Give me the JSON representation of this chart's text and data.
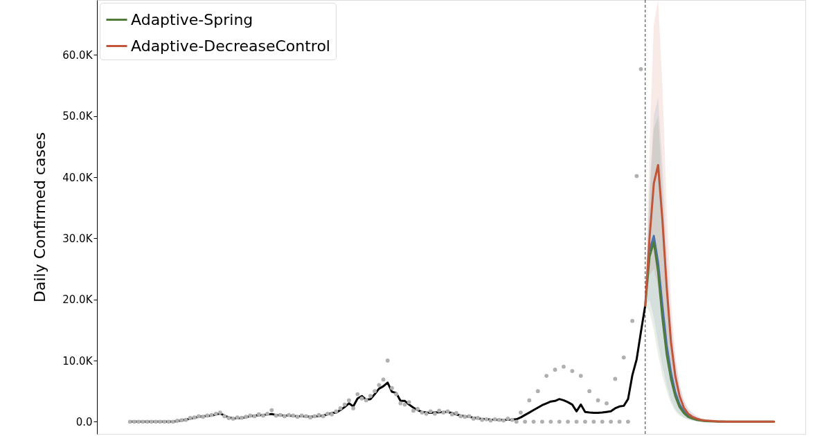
{
  "chart_data": {
    "type": "line",
    "ylabel": "Daily Confirmed cases",
    "categories": [
      null,
      null,
      null,
      null,
      null,
      null,
      null,
      null,
      null,
      null,
      null,
      null,
      null,
      null,
      null,
      null,
      null,
      null,
      null,
      null,
      null,
      null,
      null,
      null,
      null,
      null,
      null,
      null,
      null,
      null,
      null,
      null,
      null,
      null,
      null,
      null,
      null,
      null,
      null,
      null,
      null,
      null,
      null,
      null,
      null,
      null,
      null,
      null,
      null,
      null,
      null,
      null,
      null,
      null,
      null,
      null,
      null,
      null,
      null,
      null,
      null,
      null,
      null,
      null,
      null,
      null,
      null,
      null,
      null,
      null,
      null,
      null,
      null,
      null,
      null,
      null,
      null,
      null,
      null,
      null,
      null,
      null,
      null,
      null,
      null,
      null,
      null,
      null,
      null,
      null,
      null,
      null,
      null,
      null,
      null,
      null,
      null,
      null,
      null,
      null,
      null,
      null,
      null,
      null,
      null,
      null,
      null,
      null,
      null,
      null,
      null,
      null,
      null,
      null,
      null,
      null,
      null,
      null,
      null,
      null,
      null,
      null,
      null,
      null,
      null,
      null,
      null,
      null,
      null,
      null,
      null,
      null,
      null,
      null,
      null,
      null,
      null,
      null,
      null,
      null,
      null,
      null,
      null,
      null,
      null,
      null,
      null,
      null,
      null,
      null,
      null
    ],
    "ylim": [
      -2000,
      69000
    ],
    "yticks": [
      {
        "value": 0,
        "label": "0.0"
      },
      {
        "value": 10000,
        "label": "10.0K"
      },
      {
        "value": 20000,
        "label": "20.0K"
      },
      {
        "value": 30000,
        "label": "30.0K"
      },
      {
        "value": 40000,
        "label": "40.0K"
      },
      {
        "value": 50000,
        "label": "50.0K"
      },
      {
        "value": 60000,
        "label": "60.0K"
      }
    ],
    "tick_labels": "y",
    "legend": "top left",
    "series": [
      {
        "type": "scatter",
        "color": "#b0b0b0",
        "marker": "circle",
        "values": [
          0,
          0,
          0,
          0,
          0,
          0,
          0,
          0,
          0,
          0,
          0,
          150,
          250,
          300,
          600,
          700,
          900,
          800,
          1000,
          1100,
          1300,
          1500,
          900,
          600,
          500,
          700,
          650,
          800,
          1000,
          900,
          1200,
          1000,
          1300,
          1900,
          1000,
          1100,
          900,
          1100,
          1000,
          800,
          1000,
          900,
          700,
          900,
          1100,
          900,
          1300,
          1200,
          1700,
          2200,
          2800,
          3500,
          2200,
          4500,
          3800,
          3500,
          4200,
          5000,
          6000,
          6900,
          10000,
          5500,
          4500,
          3000,
          2800,
          3200,
          1800,
          2100,
          1500,
          1300,
          1700,
          1300,
          1800,
          1500,
          1700,
          1200,
          1400,
          900,
          800,
          900,
          500,
          600,
          300,
          400,
          200,
          400,
          300,
          200,
          500,
          300,
          0,
          1500,
          0,
          3500,
          0,
          5000,
          0,
          7500,
          0,
          8500,
          0,
          9000,
          0,
          8300,
          0,
          7500,
          0,
          5000,
          0,
          3500,
          0,
          3000,
          0,
          7000,
          0,
          10500,
          0,
          16500,
          40200,
          57700,
          null,
          null,
          null,
          null,
          null,
          null,
          null,
          null,
          null,
          null,
          null,
          null,
          null,
          null,
          null,
          null,
          null,
          null,
          null,
          null,
          null,
          null,
          null,
          null,
          null,
          null,
          null,
          null,
          null,
          null,
          null
        ]
      },
      {
        "color": "#000000",
        "values": [
          0,
          0,
          0,
          0,
          0,
          0,
          0,
          0,
          0,
          0,
          0,
          100,
          200,
          350,
          500,
          650,
          800,
          900,
          950,
          1000,
          1200,
          1350,
          1000,
          700,
          560,
          580,
          600,
          750,
          900,
          1000,
          1050,
          1100,
          1200,
          1250,
          1100,
          1050,
          1000,
          1000,
          950,
          900,
          900,
          850,
          800,
          850,
          950,
          1000,
          1200,
          1400,
          1500,
          1900,
          2400,
          3000,
          2500,
          3800,
          4200,
          3600,
          3700,
          4500,
          5400,
          5800,
          6400,
          4900,
          4700,
          3400,
          3400,
          2800,
          2300,
          1900,
          1600,
          1500,
          1450,
          1500,
          1550,
          1600,
          1600,
          1400,
          1200,
          1000,
          900,
          800,
          650,
          550,
          450,
          400,
          350,
          320,
          300,
          300,
          320,
          350,
          400,
          700,
          1100,
          1500,
          1900,
          2300,
          2700,
          3000,
          3300,
          3400,
          3700,
          3500,
          3200,
          2800,
          1700,
          2800,
          1600,
          1500,
          1450,
          1450,
          1500,
          1600,
          1700,
          2200,
          2500,
          2600,
          3700,
          7600,
          10200,
          14700,
          19000,
          null,
          null,
          null,
          null,
          null,
          null,
          null,
          null,
          null,
          null,
          null,
          null,
          null,
          null,
          null,
          null,
          null,
          null,
          null,
          null,
          null,
          null,
          null,
          null,
          null,
          null,
          null,
          null,
          null,
          null
        ]
      },
      {
        "color": "#4a72b0",
        "values": [
          null,
          null,
          null,
          null,
          null,
          null,
          null,
          null,
          null,
          null,
          null,
          null,
          null,
          null,
          null,
          null,
          null,
          null,
          null,
          null,
          null,
          null,
          null,
          null,
          null,
          null,
          null,
          null,
          null,
          null,
          null,
          null,
          null,
          null,
          null,
          null,
          null,
          null,
          null,
          null,
          null,
          null,
          null,
          null,
          null,
          null,
          null,
          null,
          null,
          null,
          null,
          null,
          null,
          null,
          null,
          null,
          null,
          null,
          null,
          null,
          null,
          null,
          null,
          null,
          null,
          null,
          null,
          null,
          null,
          null,
          null,
          null,
          null,
          null,
          null,
          null,
          null,
          null,
          null,
          null,
          null,
          null,
          null,
          null,
          null,
          null,
          null,
          null,
          null,
          null,
          null,
          null,
          null,
          null,
          null,
          null,
          null,
          null,
          null,
          null,
          null,
          null,
          null,
          null,
          null,
          null,
          null,
          null,
          null,
          null,
          null,
          null,
          null,
          null,
          null,
          null,
          null,
          null,
          null,
          null,
          null,
          28000,
          30400,
          26000,
          19000,
          12500,
          8000,
          4800,
          2800,
          1700,
          1000,
          650,
          null,
          null,
          null,
          null,
          null,
          null,
          null,
          null,
          null,
          null,
          null,
          null,
          null,
          null,
          null,
          null,
          null,
          null,
          null
        ],
        "upper": [
          null,
          null,
          null,
          null,
          null,
          null,
          null,
          null,
          null,
          null,
          null,
          null,
          null,
          null,
          null,
          null,
          null,
          null,
          null,
          null,
          null,
          null,
          null,
          null,
          null,
          null,
          null,
          null,
          null,
          null,
          null,
          null,
          null,
          null,
          null,
          null,
          null,
          null,
          null,
          null,
          null,
          null,
          null,
          null,
          null,
          null,
          null,
          null,
          null,
          null,
          null,
          null,
          null,
          null,
          null,
          null,
          null,
          null,
          null,
          null,
          null,
          null,
          null,
          null,
          null,
          null,
          null,
          null,
          null,
          null,
          null,
          null,
          null,
          null,
          null,
          null,
          null,
          null,
          null,
          null,
          null,
          null,
          null,
          null,
          null,
          null,
          null,
          null,
          null,
          null,
          null,
          null,
          null,
          null,
          null,
          null,
          null,
          null,
          null,
          null,
          null,
          null,
          null,
          null,
          null,
          null,
          null,
          null,
          null,
          null,
          null,
          null,
          null,
          null,
          null,
          null,
          null,
          null,
          null,
          null,
          19000,
          38000,
          50000,
          53000,
          42000,
          28000,
          17000,
          10000,
          6000,
          3500,
          2200,
          1500,
          1000,
          600,
          400,
          250,
          150,
          100,
          50,
          0,
          0,
          0,
          0,
          0,
          0,
          0,
          0,
          0,
          0,
          0,
          0
        ],
        "lower": [
          null,
          null,
          null,
          null,
          null,
          null,
          null,
          null,
          null,
          null,
          null,
          null,
          null,
          null,
          null,
          null,
          null,
          null,
          null,
          null,
          null,
          null,
          null,
          null,
          null,
          null,
          null,
          null,
          null,
          null,
          null,
          null,
          null,
          null,
          null,
          null,
          null,
          null,
          null,
          null,
          null,
          null,
          null,
          null,
          null,
          null,
          null,
          null,
          null,
          null,
          null,
          null,
          null,
          null,
          null,
          null,
          null,
          null,
          null,
          null,
          null,
          null,
          null,
          null,
          null,
          null,
          null,
          null,
          null,
          null,
          null,
          null,
          null,
          null,
          null,
          null,
          null,
          null,
          null,
          null,
          null,
          null,
          null,
          null,
          null,
          null,
          null,
          null,
          null,
          null,
          null,
          null,
          null,
          null,
          null,
          null,
          null,
          null,
          null,
          null,
          null,
          null,
          null,
          null,
          null,
          null,
          null,
          null,
          null,
          null,
          null,
          null,
          null,
          null,
          null,
          null,
          null,
          null,
          null,
          null,
          19000,
          20000,
          17000,
          13000,
          9000,
          6000,
          3500,
          2000,
          1200,
          700,
          400,
          200,
          100,
          50,
          0,
          0,
          0,
          0,
          0,
          0,
          0,
          0,
          0,
          0,
          0,
          0,
          0,
          0,
          0,
          0,
          0
        ]
      },
      {
        "name": "Adaptive-Spring",
        "color": "#4e7a3a",
        "values": [
          null,
          null,
          null,
          null,
          null,
          null,
          null,
          null,
          null,
          null,
          null,
          null,
          null,
          null,
          null,
          null,
          null,
          null,
          null,
          null,
          null,
          null,
          null,
          null,
          null,
          null,
          null,
          null,
          null,
          null,
          null,
          null,
          null,
          null,
          null,
          null,
          null,
          null,
          null,
          null,
          null,
          null,
          null,
          null,
          null,
          null,
          null,
          null,
          null,
          null,
          null,
          null,
          null,
          null,
          null,
          null,
          null,
          null,
          null,
          null,
          null,
          null,
          null,
          null,
          null,
          null,
          null,
          null,
          null,
          null,
          null,
          null,
          null,
          null,
          null,
          null,
          null,
          null,
          null,
          null,
          null,
          null,
          null,
          null,
          null,
          null,
          null,
          null,
          null,
          null,
          null,
          null,
          null,
          null,
          null,
          null,
          null,
          null,
          null,
          null,
          null,
          null,
          null,
          null,
          null,
          null,
          null,
          null,
          null,
          null,
          null,
          null,
          null,
          null,
          null,
          null,
          null,
          null,
          null,
          null,
          19000,
          27000,
          29400,
          24500,
          17000,
          11000,
          7000,
          4200,
          2400,
          1400,
          800,
          500,
          300,
          180,
          100,
          60,
          30,
          0,
          0,
          0,
          0,
          0,
          0,
          0,
          0,
          0,
          0,
          0,
          0,
          0,
          0
        ],
        "upper": [
          null,
          null,
          null,
          null,
          null,
          null,
          null,
          null,
          null,
          null,
          null,
          null,
          null,
          null,
          null,
          null,
          null,
          null,
          null,
          null,
          null,
          null,
          null,
          null,
          null,
          null,
          null,
          null,
          null,
          null,
          null,
          null,
          null,
          null,
          null,
          null,
          null,
          null,
          null,
          null,
          null,
          null,
          null,
          null,
          null,
          null,
          null,
          null,
          null,
          null,
          null,
          null,
          null,
          null,
          null,
          null,
          null,
          null,
          null,
          null,
          null,
          null,
          null,
          null,
          null,
          null,
          null,
          null,
          null,
          null,
          null,
          null,
          null,
          null,
          null,
          null,
          null,
          null,
          null,
          null,
          null,
          null,
          null,
          null,
          null,
          null,
          null,
          null,
          null,
          null,
          null,
          null,
          null,
          null,
          null,
          null,
          null,
          null,
          null,
          null,
          null,
          null,
          null,
          null,
          null,
          null,
          null,
          null,
          null,
          null,
          null,
          null,
          null,
          null,
          null,
          null,
          null,
          null,
          null,
          null,
          19000,
          37000,
          48000,
          50000,
          38000,
          24000,
          14000,
          8000,
          4500,
          2600,
          1600,
          1000,
          600,
          350,
          200,
          120,
          80,
          50,
          0,
          0,
          0,
          0,
          0,
          0,
          0,
          0,
          0,
          0,
          0,
          0,
          0
        ],
        "lower": [
          null,
          null,
          null,
          null,
          null,
          null,
          null,
          null,
          null,
          null,
          null,
          null,
          null,
          null,
          null,
          null,
          null,
          null,
          null,
          null,
          null,
          null,
          null,
          null,
          null,
          null,
          null,
          null,
          null,
          null,
          null,
          null,
          null,
          null,
          null,
          null,
          null,
          null,
          null,
          null,
          null,
          null,
          null,
          null,
          null,
          null,
          null,
          null,
          null,
          null,
          null,
          null,
          null,
          null,
          null,
          null,
          null,
          null,
          null,
          null,
          null,
          null,
          null,
          null,
          null,
          null,
          null,
          null,
          null,
          null,
          null,
          null,
          null,
          null,
          null,
          null,
          null,
          null,
          null,
          null,
          null,
          null,
          null,
          null,
          null,
          null,
          null,
          null,
          null,
          null,
          null,
          null,
          null,
          null,
          null,
          null,
          null,
          null,
          null,
          null,
          null,
          null,
          null,
          null,
          null,
          null,
          null,
          null,
          null,
          null,
          null,
          null,
          null,
          null,
          null,
          null,
          null,
          null,
          null,
          null,
          19000,
          18000,
          15000,
          11000,
          7500,
          5000,
          3000,
          1700,
          1000,
          600,
          300,
          150,
          80,
          0,
          0,
          0,
          0,
          0,
          0,
          0,
          0,
          0,
          0,
          0,
          0,
          0,
          0,
          0,
          0,
          0,
          0
        ]
      },
      {
        "name": "Adaptive-DecreaseControl",
        "color": "#c0553a",
        "values": [
          null,
          null,
          null,
          null,
          null,
          null,
          null,
          null,
          null,
          null,
          null,
          null,
          null,
          null,
          null,
          null,
          null,
          null,
          null,
          null,
          null,
          null,
          null,
          null,
          null,
          null,
          null,
          null,
          null,
          null,
          null,
          null,
          null,
          null,
          null,
          null,
          null,
          null,
          null,
          null,
          null,
          null,
          null,
          null,
          null,
          null,
          null,
          null,
          null,
          null,
          null,
          null,
          null,
          null,
          null,
          null,
          null,
          null,
          null,
          null,
          null,
          null,
          null,
          null,
          null,
          null,
          null,
          null,
          null,
          null,
          null,
          null,
          null,
          null,
          null,
          null,
          null,
          null,
          null,
          null,
          null,
          null,
          null,
          null,
          null,
          null,
          null,
          null,
          null,
          null,
          null,
          null,
          null,
          null,
          null,
          null,
          null,
          null,
          null,
          null,
          null,
          null,
          null,
          null,
          null,
          null,
          null,
          null,
          null,
          null,
          null,
          null,
          null,
          null,
          null,
          null,
          null,
          null,
          null,
          null,
          19000,
          30000,
          39000,
          42000,
          33000,
          22000,
          13000,
          7500,
          4200,
          2300,
          1300,
          800,
          500,
          300,
          200,
          150,
          100,
          50,
          30,
          0,
          0,
          0,
          0,
          0,
          0,
          0,
          0,
          0,
          0,
          0,
          0
        ],
        "upper": [
          null,
          null,
          null,
          null,
          null,
          null,
          null,
          null,
          null,
          null,
          null,
          null,
          null,
          null,
          null,
          null,
          null,
          null,
          null,
          null,
          null,
          null,
          null,
          null,
          null,
          null,
          null,
          null,
          null,
          null,
          null,
          null,
          null,
          null,
          null,
          null,
          null,
          null,
          null,
          null,
          null,
          null,
          null,
          null,
          null,
          null,
          null,
          null,
          null,
          null,
          null,
          null,
          null,
          null,
          null,
          null,
          null,
          null,
          null,
          null,
          null,
          null,
          null,
          null,
          null,
          null,
          null,
          null,
          null,
          null,
          null,
          null,
          null,
          null,
          null,
          null,
          null,
          null,
          null,
          null,
          null,
          null,
          null,
          null,
          null,
          null,
          null,
          null,
          null,
          null,
          null,
          null,
          null,
          null,
          null,
          null,
          null,
          null,
          null,
          null,
          null,
          null,
          null,
          null,
          null,
          null,
          null,
          null,
          null,
          null,
          null,
          null,
          null,
          null,
          null,
          null,
          null,
          null,
          null,
          null,
          19000,
          45000,
          65000,
          69000,
          55000,
          35000,
          20000,
          11000,
          6000,
          3500,
          2000,
          1300,
          800,
          500,
          300,
          200,
          100,
          50,
          0,
          0,
          0,
          0,
          0,
          0,
          0,
          0,
          0,
          0,
          0,
          0,
          0
        ],
        "lower": [
          null,
          null,
          null,
          null,
          null,
          null,
          null,
          null,
          null,
          null,
          null,
          null,
          null,
          null,
          null,
          null,
          null,
          null,
          null,
          null,
          null,
          null,
          null,
          null,
          null,
          null,
          null,
          null,
          null,
          null,
          null,
          null,
          null,
          null,
          null,
          null,
          null,
          null,
          null,
          null,
          null,
          null,
          null,
          null,
          null,
          null,
          null,
          null,
          null,
          null,
          null,
          null,
          null,
          null,
          null,
          null,
          null,
          null,
          null,
          null,
          null,
          null,
          null,
          null,
          null,
          null,
          null,
          null,
          null,
          null,
          null,
          null,
          null,
          null,
          null,
          null,
          null,
          null,
          null,
          null,
          null,
          null,
          null,
          null,
          null,
          null,
          null,
          null,
          null,
          null,
          null,
          null,
          null,
          null,
          null,
          null,
          null,
          null,
          null,
          null,
          null,
          null,
          null,
          null,
          null,
          null,
          null,
          null,
          null,
          null,
          null,
          null,
          null,
          null,
          null,
          null,
          null,
          null,
          null,
          null,
          19000,
          24000,
          25000,
          22000,
          16000,
          10000,
          6000,
          3500,
          2000,
          1100,
          600,
          350,
          200,
          100,
          50,
          0,
          0,
          0,
          0,
          0,
          0,
          0,
          0,
          0,
          0,
          0,
          0,
          0,
          0,
          0,
          0
        ]
      }
    ]
  }
}
